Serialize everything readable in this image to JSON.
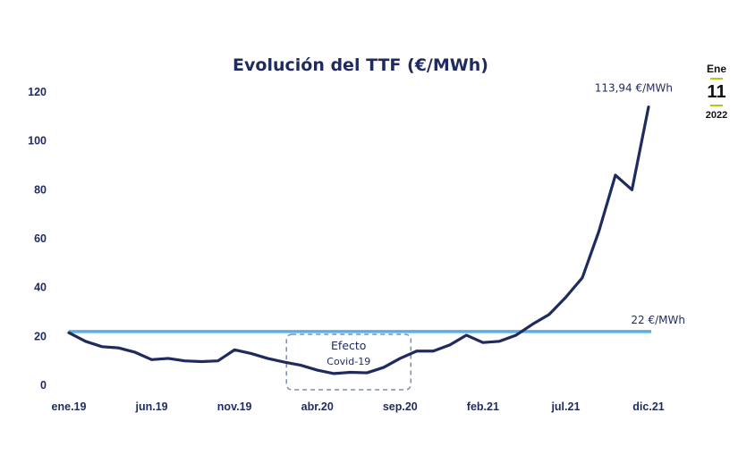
{
  "chart_data": {
    "type": "line",
    "title": "Evolución del TTF (€/MWh)",
    "xlabel": "",
    "ylabel": "",
    "ylim": [
      0,
      120
    ],
    "y_ticks": [
      0,
      20,
      40,
      60,
      80,
      100,
      120
    ],
    "x_tick_labels": [
      "ene.19",
      "jun.19",
      "nov.19",
      "abr.20",
      "sep.20",
      "feb.21",
      "jul.21",
      "dic.21"
    ],
    "x_tick_indices": [
      0,
      5,
      10,
      15,
      20,
      25,
      30,
      35
    ],
    "series": [
      {
        "name": "TTF",
        "color": "#1f2a5e",
        "values": [
          21.5,
          18,
          15.8,
          15.3,
          13.5,
          10.5,
          11,
          10,
          9.7,
          10,
          14.5,
          13,
          11,
          9.5,
          8.2,
          6.2,
          4.8,
          5.3,
          5.1,
          7.3,
          11,
          14,
          14,
          16.5,
          20.5,
          17.5,
          18,
          20.5,
          25,
          29,
          36,
          44,
          63,
          86,
          80,
          113.94
        ]
      }
    ],
    "reference_line": {
      "value": 22,
      "label": "22 €/MWh",
      "color": "#5aaee6"
    },
    "last_value_label": "113,94 €/MWh",
    "annotation": {
      "line1": "Efecto",
      "line2": "Covid-19",
      "start_index": 14,
      "end_index": 20
    }
  },
  "date_badge": {
    "month": "Ene",
    "day": "11",
    "year": "2022"
  }
}
